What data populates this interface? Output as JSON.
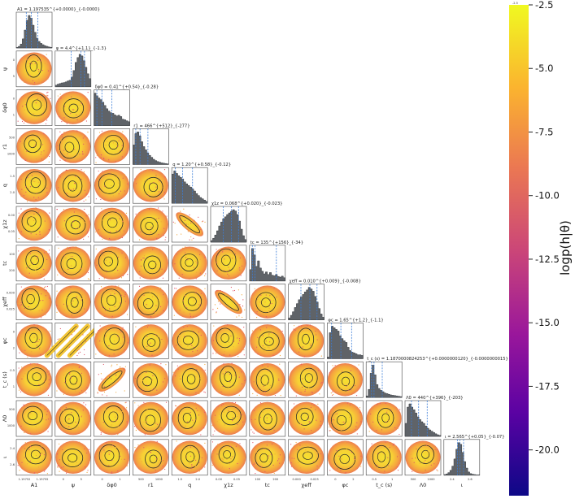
{
  "chart_data": {
    "type": "corner-plot",
    "description_free": true,
    "parameters": [
      {
        "key": "A1",
        "label": "A1",
        "title": "A1 = 1.197535^{+0.0000}_{-0.0000}",
        "hist": [
          0.02,
          0.05,
          0.12,
          0.28,
          0.55,
          0.85,
          1.0,
          0.92,
          0.7,
          0.48,
          0.3,
          0.2,
          0.14,
          0.1,
          0.07,
          0.05,
          0.03,
          0.02
        ],
        "q": [
          0.28,
          0.42,
          0.6
        ],
        "ticks": [
          "1.19752",
          "1.19755"
        ]
      },
      {
        "key": "psi",
        "label": "ψ",
        "title": "ψ = 4.4^{+1.1}_{-1.3}",
        "hist": [
          0.05,
          0.08,
          0.1,
          0.12,
          0.13,
          0.15,
          0.18,
          0.2,
          0.3,
          0.5,
          0.75,
          0.9,
          1.0,
          0.95,
          0.8,
          0.6,
          0.4,
          0.25
        ],
        "q": [
          0.45,
          0.72,
          0.82
        ],
        "ticks": [
          "0",
          "5"
        ]
      },
      {
        "key": "dphi0",
        "label": "δφ0",
        "title": "δφ0 = 0.41^{+0.54}_{-0.28}",
        "hist": [
          1.0,
          0.92,
          0.85,
          0.8,
          0.72,
          0.62,
          0.52,
          0.45,
          0.4,
          0.38,
          0.33,
          0.3,
          0.32,
          0.28,
          0.2,
          0.18,
          0.15,
          0.12
        ],
        "q": [
          0.08,
          0.22,
          0.5
        ],
        "ticks": [
          "0",
          "1"
        ]
      },
      {
        "key": "r1",
        "label": "r1",
        "title": "r1 = 466^{+512}_{-277}",
        "hist": [
          0.6,
          0.95,
          1.0,
          0.88,
          0.7,
          0.55,
          0.45,
          0.35,
          0.28,
          0.22,
          0.16,
          0.12,
          0.09,
          0.07,
          0.05,
          0.04,
          0.03,
          0.02
        ],
        "q": [
          0.08,
          0.2,
          0.42
        ],
        "ticks": [
          "500",
          "1000"
        ]
      },
      {
        "key": "q",
        "label": "q",
        "title": "q = 1.20^{+0.58}_{-0.12}",
        "hist": [
          0.9,
          1.0,
          0.92,
          0.85,
          0.8,
          0.75,
          0.66,
          0.6,
          0.55,
          0.5,
          0.44,
          0.38,
          0.3,
          0.24,
          0.18,
          0.14,
          0.1,
          0.06
        ],
        "q": [
          0.1,
          0.3,
          0.58
        ],
        "ticks": [
          "1.5",
          "2.0"
        ]
      },
      {
        "key": "chi1z",
        "label": "χ1z",
        "title": "χ1z = 0.068^{+0.020}_{-0.023}",
        "hist": [
          0.05,
          0.12,
          0.22,
          0.35,
          0.5,
          0.62,
          0.72,
          0.78,
          0.85,
          0.9,
          0.95,
          1.0,
          0.96,
          0.85,
          0.65,
          0.4,
          0.2,
          0.08
        ],
        "q": [
          0.35,
          0.58,
          0.78
        ],
        "ticks": [
          "0.00",
          "0.05"
        ]
      },
      {
        "key": "tc",
        "label": "tc",
        "title": "tc = 135^{+156}_{-34}",
        "hist": [
          0.35,
          1.0,
          0.8,
          0.45,
          0.62,
          0.4,
          0.3,
          0.22,
          0.28,
          0.2,
          0.26,
          0.18,
          0.16,
          0.2,
          0.14,
          0.12,
          0.15,
          0.1
        ],
        "q": [
          0.08,
          0.15,
          0.75
        ],
        "ticks": [
          "100",
          "200"
        ]
      },
      {
        "key": "chi_eff",
        "label": "χeff",
        "title": "χeff = 0.010^{+0.009}_{-0.008}",
        "hist": [
          0.06,
          0.14,
          0.25,
          0.38,
          0.5,
          0.62,
          0.7,
          0.78,
          0.86,
          0.92,
          1.0,
          0.95,
          0.88,
          0.72,
          0.55,
          0.35,
          0.18,
          0.08
        ],
        "q": [
          0.35,
          0.6,
          0.8
        ],
        "ticks": [
          "0.000",
          "0.025"
        ]
      },
      {
        "key": "phi_c",
        "label": "φc",
        "title": "φc = 1.65^{+1.2}_{-1.1}",
        "hist": [
          0.05,
          0.8,
          1.0,
          0.95,
          0.9,
          0.85,
          0.7,
          0.62,
          0.55,
          0.5,
          0.35,
          0.25,
          0.2,
          0.18,
          0.15,
          0.12,
          0.12,
          0.1
        ],
        "q": [
          0.12,
          0.38,
          0.68
        ],
        "ticks": [
          "0",
          "2"
        ]
      },
      {
        "key": "t_c_s",
        "label": "t_c (s)",
        "title": "t_c (s) = 1.1870000824253^{+0.0000000120}_{-0.0000000015} × 10^9",
        "hist": [
          0.05,
          0.25,
          0.75,
          1.0,
          0.7,
          0.4,
          0.28,
          0.22,
          0.18,
          0.14,
          0.12,
          0.1,
          0.08,
          0.07,
          0.06,
          0.05,
          0.04,
          0.03
        ],
        "q": [
          0.15,
          0.22,
          0.45
        ],
        "ticks": [
          "0.5",
          "1"
        ]
      },
      {
        "key": "Lambda",
        "label": "Λ0",
        "title": "Λ0 = 440^{+396}_{-203}",
        "hist": [
          0.4,
          0.9,
          1.0,
          0.9,
          0.82,
          0.72,
          0.6,
          0.52,
          0.45,
          0.4,
          0.32,
          0.25,
          0.2,
          0.16,
          0.12,
          0.08,
          0.05,
          0.03
        ],
        "q": [
          0.18,
          0.38,
          0.62
        ],
        "ticks": [
          "500",
          "1000"
        ]
      },
      {
        "key": "iota",
        "label": "ι",
        "title": "ι = 2.565^{+0.05}_{-0.07}",
        "hist": [
          0.02,
          0.04,
          0.08,
          0.15,
          0.28,
          0.5,
          0.8,
          1.0,
          0.95,
          0.7,
          0.42,
          0.22,
          0.1,
          0.05,
          0.03,
          0.02,
          0.01,
          0.01
        ],
        "q": [
          0.38,
          0.45,
          0.55
        ],
        "ticks": [
          "2.4",
          "2.6"
        ]
      }
    ],
    "correlations": [
      {
        "i": 8,
        "j": 1,
        "type": "diagonal-bands"
      },
      {
        "i": 9,
        "j": 2,
        "type": "linear-positive"
      },
      {
        "i": 5,
        "j": 4,
        "type": "linear-negative"
      },
      {
        "i": 7,
        "j": 5,
        "type": "linear-negative"
      }
    ],
    "colorbar": {
      "label": "logp(h|θ)",
      "range": [
        -21.8,
        -2.5
      ],
      "ticks": [
        "-2.5",
        "-5.0",
        "-7.5",
        "-10.0",
        "-12.5",
        "-15.0",
        "-17.5",
        "-20.0"
      ],
      "top_label": "-2.5",
      "colormap": "plasma"
    },
    "colors": {
      "hist_fill": "#5f6368",
      "contour": "#2b2b2b",
      "quantile_line": "#3b7dd8",
      "plasma": [
        "#0d0887",
        "#5b02a3",
        "#9a179b",
        "#cb4678",
        "#eb7852",
        "#fbb32f",
        "#f0f921"
      ]
    }
  }
}
